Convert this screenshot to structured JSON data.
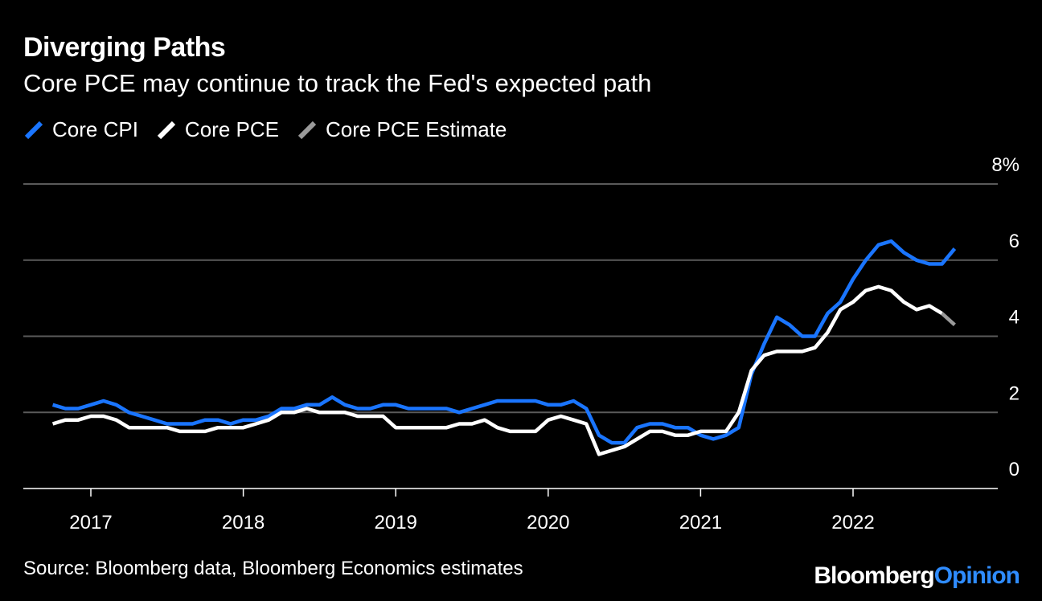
{
  "header": {
    "title": "Diverging Paths",
    "subtitle": "Core PCE may continue to track the Fed's expected path"
  },
  "footer": {
    "source": "Source: Bloomberg data, Bloomberg Economics estimates",
    "brand_main": "Bloomberg",
    "brand_accent": "Opinion"
  },
  "colors": {
    "background": "#000000",
    "core_cpi": "#1a75ff",
    "core_pce": "#ffffff",
    "core_pce_estimate": "#9a9a9a",
    "grid": "#5a5a5a",
    "brand_accent": "#2f8cff"
  },
  "chart_data": {
    "type": "line",
    "title": "Diverging Paths",
    "subtitle": "Core PCE may continue to track the Fed's expected path",
    "xlabel": "",
    "ylabel": "",
    "y_unit": "%",
    "ylim": [
      0,
      8
    ],
    "y_ticks": [
      0,
      2,
      4,
      6,
      8
    ],
    "y_tick_labels": [
      "0",
      "2",
      "4",
      "6",
      "8%"
    ],
    "x_range": [
      "2016-09",
      "2022-11"
    ],
    "x_ticks": [
      "2017-01",
      "2018-01",
      "2019-01",
      "2020-01",
      "2021-01",
      "2022-01"
    ],
    "x_tick_labels": [
      "2017",
      "2018",
      "2019",
      "2020",
      "2021",
      "2022"
    ],
    "grid": true,
    "legend_position": "top-left",
    "series": [
      {
        "name": "Core CPI",
        "color_key": "core_cpi",
        "start": "2016-10",
        "values": [
          2.2,
          2.1,
          2.1,
          2.2,
          2.3,
          2.2,
          2.0,
          1.9,
          1.8,
          1.7,
          1.7,
          1.7,
          1.8,
          1.8,
          1.7,
          1.8,
          1.8,
          1.9,
          2.1,
          2.1,
          2.2,
          2.2,
          2.4,
          2.2,
          2.1,
          2.1,
          2.2,
          2.2,
          2.1,
          2.1,
          2.1,
          2.1,
          2.0,
          2.1,
          2.2,
          2.3,
          2.3,
          2.3,
          2.3,
          2.2,
          2.2,
          2.3,
          2.1,
          1.4,
          1.2,
          1.2,
          1.6,
          1.7,
          1.7,
          1.6,
          1.6,
          1.4,
          1.3,
          1.4,
          1.6,
          3.0,
          3.8,
          4.5,
          4.3,
          4.0,
          4.0,
          4.6,
          4.9,
          5.5,
          6.0,
          6.4,
          6.5,
          6.2,
          6.0,
          5.9,
          5.9,
          6.3
        ]
      },
      {
        "name": "Core PCE",
        "color_key": "core_pce",
        "start": "2016-10",
        "values": [
          1.7,
          1.8,
          1.8,
          1.9,
          1.9,
          1.8,
          1.6,
          1.6,
          1.6,
          1.6,
          1.5,
          1.5,
          1.5,
          1.6,
          1.6,
          1.6,
          1.7,
          1.8,
          2.0,
          2.0,
          2.1,
          2.0,
          2.0,
          2.0,
          1.9,
          1.9,
          1.9,
          1.6,
          1.6,
          1.6,
          1.6,
          1.6,
          1.7,
          1.7,
          1.8,
          1.6,
          1.5,
          1.5,
          1.5,
          1.8,
          1.9,
          1.8,
          1.7,
          0.9,
          1.0,
          1.1,
          1.3,
          1.5,
          1.5,
          1.4,
          1.4,
          1.5,
          1.5,
          1.5,
          2.0,
          3.1,
          3.5,
          3.6,
          3.6,
          3.6,
          3.7,
          4.1,
          4.7,
          4.9,
          5.2,
          5.3,
          5.2,
          4.9,
          4.7,
          4.8,
          4.6
        ]
      },
      {
        "name": "Core PCE Estimate",
        "color_key": "core_pce_estimate",
        "start": "2022-08",
        "values": [
          4.6,
          4.3
        ]
      }
    ]
  }
}
